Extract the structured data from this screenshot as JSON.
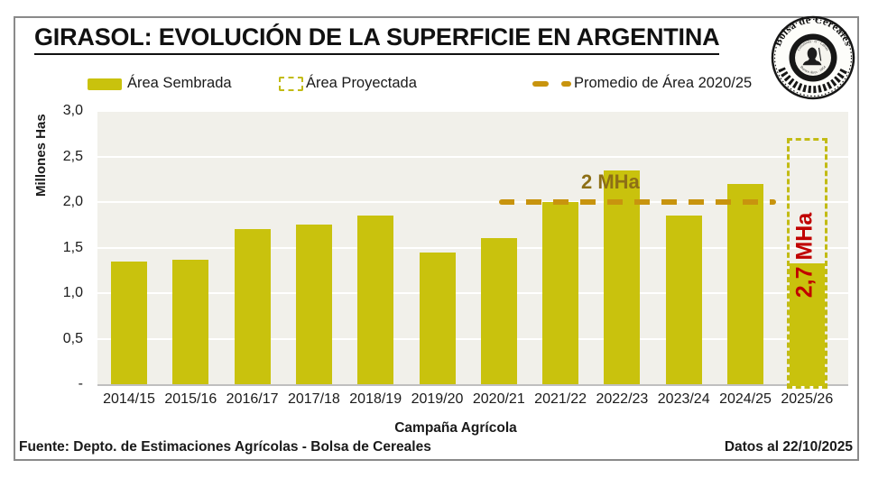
{
  "title": "GIRASOL: EVOLUCIÓN DE LA SUPERFICIE EN ARGENTINA",
  "legend": [
    {
      "label": "Área Sembrada",
      "swatch": "solid-bar"
    },
    {
      "label": "Área Proyectada",
      "swatch": "dashed-outline-box"
    },
    {
      "label": "Promedio de Área 2020/25",
      "swatch": "dashed-line"
    }
  ],
  "chart_data": {
    "type": "bar",
    "title": "GIRASOL: EVOLUCIÓN DE LA SUPERFICIE EN ARGENTINA",
    "xlabel": "Campaña Agrícola",
    "ylabel": "Millones Has",
    "ylim": [
      0,
      3.0
    ],
    "grid": "horizontal",
    "legend_position": "top",
    "yticks": [
      {
        "value": 3.0,
        "label": "3,0"
      },
      {
        "value": 2.5,
        "label": "2,5"
      },
      {
        "value": 2.0,
        "label": "2,0"
      },
      {
        "value": 1.5,
        "label": "1,5"
      },
      {
        "value": 1.0,
        "label": "1,0"
      },
      {
        "value": 0.5,
        "label": "0,5"
      },
      {
        "value": 0.0,
        "label": "-"
      }
    ],
    "categories": [
      "2014/15",
      "2015/16",
      "2016/17",
      "2017/18",
      "2018/19",
      "2019/20",
      "2020/21",
      "2021/22",
      "2022/23",
      "2023/24",
      "2024/25",
      "2025/26"
    ],
    "series": [
      {
        "name": "Área Sembrada",
        "type": "bar",
        "values": [
          1.35,
          1.37,
          1.7,
          1.75,
          1.85,
          1.45,
          1.6,
          2.0,
          2.35,
          1.85,
          2.2,
          1.35
        ]
      },
      {
        "name": "Área Proyectada",
        "type": "bar-outline",
        "values": [
          null,
          null,
          null,
          null,
          null,
          null,
          null,
          null,
          null,
          null,
          null,
          2.7
        ]
      },
      {
        "name": "Promedio de Área 2020/25",
        "type": "reference-line",
        "value": 2.0,
        "x_span": [
          "2020/21",
          "2024/25"
        ]
      }
    ],
    "annotations": [
      {
        "text": "2 MHa",
        "refers_to": "Promedio de Área 2020/25",
        "orientation": "horizontal"
      },
      {
        "text": "2,7 MHa",
        "refers_to": "Área Proyectada 2025/26",
        "orientation": "vertical"
      }
    ]
  },
  "footer": {
    "source": "Fuente: Depto. de Estimaciones Agrícolas - Bolsa de Cereales",
    "date_note": "Datos al 22/10/2025"
  },
  "logo": {
    "ring_text": "Bolsa de Cereales",
    "motto_text": "Constantia · et · Labore",
    "bottom_text": "Buenos Aires · 1854"
  },
  "colors": {
    "bar": "#c9c20d",
    "projected_outline": "#c2bb14",
    "average_line": "#c8940e",
    "average_label": "#8d6f16",
    "projected_label": "#c00000",
    "plot_bg": "#f1f0ea",
    "gridline": "#ffffff",
    "axis_line": "#bfbfbf",
    "frame_border": "#8a8a8a",
    "text": "#1a1a1a"
  }
}
